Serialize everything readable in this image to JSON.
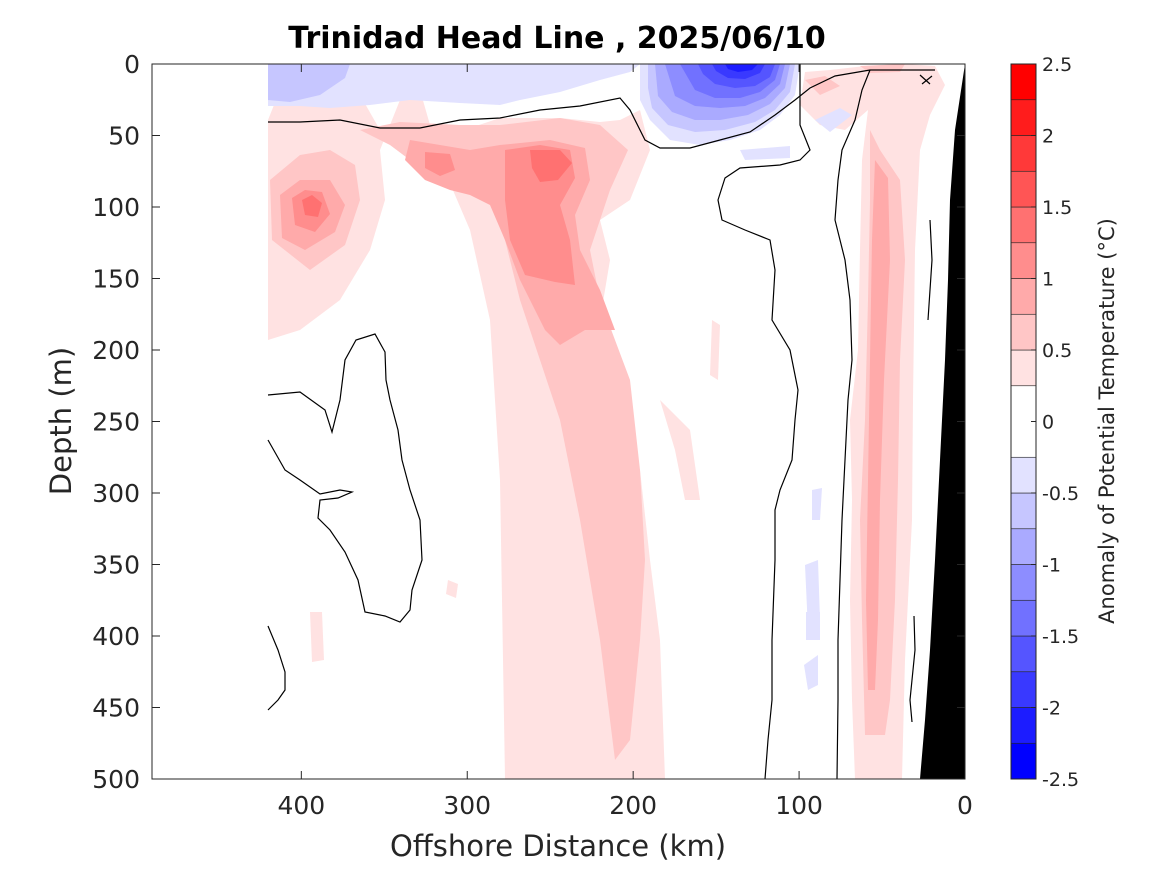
{
  "chart_data": {
    "type": "heatmap",
    "title": "Trinidad Head Line , 2025/06/10",
    "xlabel": "Offshore Distance (km)",
    "ylabel": "Depth (m)",
    "colorbar_label": "Anomaly of Potential Temperature (°C)",
    "xlim": [
      490,
      0
    ],
    "ylim": [
      0,
      500
    ],
    "x_reversed": true,
    "y_reversed": true,
    "x_ticks": [
      400,
      300,
      200,
      100,
      0
    ],
    "y_ticks": [
      0,
      50,
      100,
      150,
      200,
      250,
      300,
      350,
      400,
      450,
      500
    ],
    "colorbar_range": [
      -2.5,
      2.5
    ],
    "colorbar_ticks": [
      "2.5",
      "2",
      "1.5",
      "1",
      "0.5",
      "0",
      "-0.5",
      "-1",
      "-1.5",
      "-2",
      "-2.5"
    ],
    "colorbar_levels": [
      -2.5,
      -2.25,
      -2.0,
      -1.75,
      -1.5,
      -1.25,
      -1.0,
      -0.75,
      -0.5,
      -0.25,
      0.25,
      0.5,
      0.75,
      1.0,
      1.25,
      1.5,
      1.75,
      2.0,
      2.25,
      2.5
    ],
    "level_colors": [
      "#0000ff",
      "#1c1cff",
      "#3939ff",
      "#5555ff",
      "#7171ff",
      "#8d8dff",
      "#aaaaff",
      "#c6c6ff",
      "#e2e2ff",
      "#ffffff",
      "#ffffff",
      "#ffe2e2",
      "#ffc6c6",
      "#ffaaaa",
      "#ff8d8d",
      "#ff7171",
      "#ff5555",
      "#ff3939",
      "#ff1c1c",
      "#ff0000"
    ],
    "data_extent_x_km": [
      0,
      420
    ],
    "bathymetry_color": "#000000",
    "features": [
      {
        "name": "surface cold core",
        "x_km": 130,
        "depth_m": 5,
        "anomaly": -2.0
      },
      {
        "name": "surface cool layer west",
        "x_km": 400,
        "depth_m": 15,
        "anomaly": -0.5
      },
      {
        "name": "warm core",
        "x_km": 250,
        "depth_m": 70,
        "anomaly": 1.5
      },
      {
        "name": "warm core",
        "x_km": 395,
        "depth_m": 100,
        "anomaly": 1.5
      },
      {
        "name": "warm core",
        "x_km": 310,
        "depth_m": 65,
        "anomaly": 1.5
      },
      {
        "name": "warm tongue",
        "x_km": 250,
        "depth_m": 300,
        "anomaly": 0.75
      },
      {
        "name": "nearshore warm band",
        "x_km": 45,
        "depth_m": 250,
        "anomaly": 0.75
      }
    ],
    "grid": false,
    "colorbar_position": "right"
  }
}
